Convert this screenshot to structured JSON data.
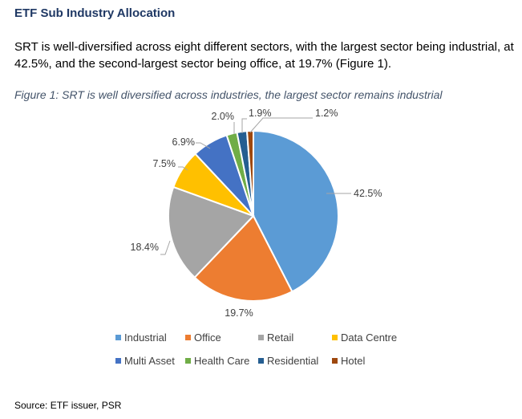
{
  "section_title": "ETF Sub Industry Allocation",
  "paragraph": "SRT is well-diversified across eight different sectors, with the largest sector being industrial, at 42.5%, and the second-largest sector being office, at 19.7% (Figure 1).",
  "figure_caption": "Figure 1: SRT is well diversified across industries, the largest sector remains industrial",
  "source": "Source: ETF issuer, PSR",
  "chart_data": {
    "type": "pie",
    "title": "",
    "legend_position": "bottom",
    "slices": [
      {
        "name": "Industrial",
        "value": 42.5,
        "label": "42.5%",
        "color": "#5b9bd5"
      },
      {
        "name": "Office",
        "value": 19.7,
        "label": "19.7%",
        "color": "#ed7d31"
      },
      {
        "name": "Retail",
        "value": 18.4,
        "label": "18.4%",
        "color": "#a5a5a5"
      },
      {
        "name": "Data Centre",
        "value": 7.5,
        "label": "7.5%",
        "color": "#ffc000"
      },
      {
        "name": "Multi Asset",
        "value": 6.9,
        "label": "6.9%",
        "color": "#4472c4"
      },
      {
        "name": "Health Care",
        "value": 2.0,
        "label": "2.0%",
        "color": "#70ad47"
      },
      {
        "name": "Residential",
        "value": 1.9,
        "label": "1.9%",
        "color": "#255e91"
      },
      {
        "name": "Hotel",
        "value": 1.2,
        "label": "1.2%",
        "color": "#9e480e"
      }
    ]
  }
}
